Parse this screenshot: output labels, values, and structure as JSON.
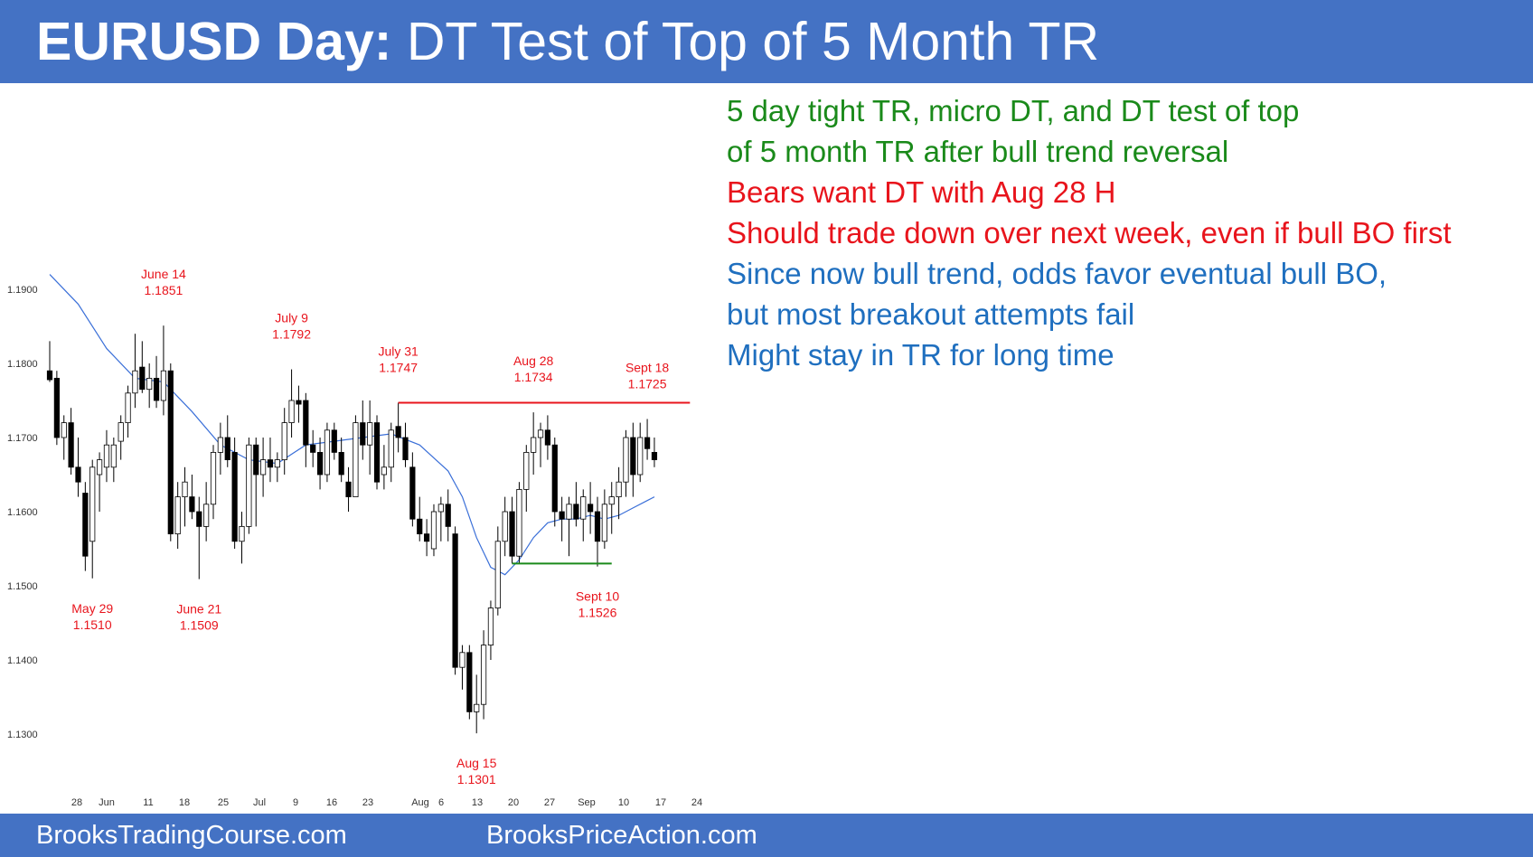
{
  "title": {
    "bold": "EURUSD Day:",
    "rest": " DT Test of Top of 5 Month TR"
  },
  "footer": {
    "left": "BrooksTradingCourse.com",
    "right": "BrooksPriceAction.com"
  },
  "commentary": [
    {
      "text": "5 day tight TR, micro DT, and DT test of top",
      "color": "#1a8a1a"
    },
    {
      "text": "of 5 month TR after bull trend reversal",
      "color": "#1a8a1a"
    },
    {
      "text": "Bears want DT with Aug 28 H",
      "color": "#e8141c"
    },
    {
      "text": "Should trade down over next week, even if bull BO first",
      "color": "#e8141c"
    },
    {
      "text": "Since now bull trend, odds favor eventual bull BO,",
      "color": "#1f6fbf"
    },
    {
      "text": "but most breakout attempts fail",
      "color": "#1f6fbf"
    },
    {
      "text": "Might stay in TR for long time",
      "color": "#1f6fbf"
    }
  ],
  "colors": {
    "accent": "#4472c4",
    "bear_candle": "#000000",
    "bull_candle": "#ffffff",
    "ema": "#3a6fd8",
    "label_red": "#e8141c",
    "resistance_line": "#e8141c",
    "support_line": "#1a8a1a"
  },
  "chart_data": {
    "type": "candlestick",
    "ylim": [
      1.125,
      1.199
    ],
    "yticks": [
      "1.1900",
      "1.1800",
      "1.1700",
      "1.1600",
      "1.1500",
      "1.1400",
      "1.1300"
    ],
    "xticks": [
      "28",
      "Jun",
      "11",
      "18",
      "25",
      "Jul",
      "9",
      "16",
      "23",
      "Aug",
      "6",
      "13",
      "20",
      "27",
      "Sep",
      "10",
      "17",
      "24"
    ],
    "candles": [
      {
        "o": 1.179,
        "h": 1.183,
        "l": 1.1775,
        "c": 1.1778
      },
      {
        "o": 1.178,
        "h": 1.179,
        "l": 1.169,
        "c": 1.17
      },
      {
        "o": 1.17,
        "h": 1.173,
        "l": 1.167,
        "c": 1.172
      },
      {
        "o": 1.172,
        "h": 1.174,
        "l": 1.165,
        "c": 1.166
      },
      {
        "o": 1.166,
        "h": 1.17,
        "l": 1.162,
        "c": 1.164
      },
      {
        "o": 1.1625,
        "h": 1.164,
        "l": 1.152,
        "c": 1.154
      },
      {
        "o": 1.156,
        "h": 1.167,
        "l": 1.151,
        "c": 1.166
      },
      {
        "o": 1.165,
        "h": 1.168,
        "l": 1.16,
        "c": 1.167
      },
      {
        "o": 1.166,
        "h": 1.171,
        "l": 1.164,
        "c": 1.169
      },
      {
        "o": 1.166,
        "h": 1.17,
        "l": 1.164,
        "c": 1.169
      },
      {
        "o": 1.1695,
        "h": 1.173,
        "l": 1.167,
        "c": 1.172
      },
      {
        "o": 1.172,
        "h": 1.177,
        "l": 1.17,
        "c": 1.176
      },
      {
        "o": 1.176,
        "h": 1.184,
        "l": 1.174,
        "c": 1.179
      },
      {
        "o": 1.1795,
        "h": 1.183,
        "l": 1.176,
        "c": 1.1765
      },
      {
        "o": 1.1765,
        "h": 1.18,
        "l": 1.174,
        "c": 1.178
      },
      {
        "o": 1.178,
        "h": 1.181,
        "l": 1.174,
        "c": 1.175
      },
      {
        "o": 1.175,
        "h": 1.1851,
        "l": 1.173,
        "c": 1.179
      },
      {
        "o": 1.179,
        "h": 1.18,
        "l": 1.156,
        "c": 1.157
      },
      {
        "o": 1.157,
        "h": 1.164,
        "l": 1.155,
        "c": 1.162
      },
      {
        "o": 1.162,
        "h": 1.166,
        "l": 1.158,
        "c": 1.164
      },
      {
        "o": 1.162,
        "h": 1.165,
        "l": 1.159,
        "c": 1.16
      },
      {
        "o": 1.16,
        "h": 1.162,
        "l": 1.1509,
        "c": 1.158
      },
      {
        "o": 1.158,
        "h": 1.164,
        "l": 1.156,
        "c": 1.161
      },
      {
        "o": 1.161,
        "h": 1.169,
        "l": 1.159,
        "c": 1.168
      },
      {
        "o": 1.168,
        "h": 1.172,
        "l": 1.165,
        "c": 1.17
      },
      {
        "o": 1.17,
        "h": 1.173,
        "l": 1.166,
        "c": 1.167
      },
      {
        "o": 1.168,
        "h": 1.17,
        "l": 1.155,
        "c": 1.156
      },
      {
        "o": 1.156,
        "h": 1.16,
        "l": 1.153,
        "c": 1.158
      },
      {
        "o": 1.158,
        "h": 1.17,
        "l": 1.157,
        "c": 1.169
      },
      {
        "o": 1.169,
        "h": 1.17,
        "l": 1.158,
        "c": 1.165
      },
      {
        "o": 1.165,
        "h": 1.17,
        "l": 1.162,
        "c": 1.167
      },
      {
        "o": 1.167,
        "h": 1.17,
        "l": 1.164,
        "c": 1.166
      },
      {
        "o": 1.166,
        "h": 1.168,
        "l": 1.164,
        "c": 1.167
      },
      {
        "o": 1.167,
        "h": 1.174,
        "l": 1.165,
        "c": 1.172
      },
      {
        "o": 1.172,
        "h": 1.1792,
        "l": 1.17,
        "c": 1.175
      },
      {
        "o": 1.175,
        "h": 1.177,
        "l": 1.172,
        "c": 1.1745
      },
      {
        "o": 1.175,
        "h": 1.176,
        "l": 1.166,
        "c": 1.169
      },
      {
        "o": 1.169,
        "h": 1.171,
        "l": 1.166,
        "c": 1.168
      },
      {
        "o": 1.168,
        "h": 1.17,
        "l": 1.163,
        "c": 1.165
      },
      {
        "o": 1.165,
        "h": 1.172,
        "l": 1.164,
        "c": 1.171
      },
      {
        "o": 1.171,
        "h": 1.172,
        "l": 1.167,
        "c": 1.168
      },
      {
        "o": 1.168,
        "h": 1.17,
        "l": 1.164,
        "c": 1.165
      },
      {
        "o": 1.164,
        "h": 1.166,
        "l": 1.16,
        "c": 1.162
      },
      {
        "o": 1.162,
        "h": 1.173,
        "l": 1.162,
        "c": 1.172
      },
      {
        "o": 1.172,
        "h": 1.175,
        "l": 1.167,
        "c": 1.169
      },
      {
        "o": 1.169,
        "h": 1.175,
        "l": 1.165,
        "c": 1.172
      },
      {
        "o": 1.172,
        "h": 1.173,
        "l": 1.163,
        "c": 1.164
      },
      {
        "o": 1.165,
        "h": 1.169,
        "l": 1.163,
        "c": 1.166
      },
      {
        "o": 1.166,
        "h": 1.172,
        "l": 1.164,
        "c": 1.171
      },
      {
        "o": 1.1715,
        "h": 1.1747,
        "l": 1.168,
        "c": 1.17
      },
      {
        "o": 1.17,
        "h": 1.172,
        "l": 1.166,
        "c": 1.167
      },
      {
        "o": 1.166,
        "h": 1.168,
        "l": 1.158,
        "c": 1.159
      },
      {
        "o": 1.159,
        "h": 1.162,
        "l": 1.156,
        "c": 1.157
      },
      {
        "o": 1.157,
        "h": 1.159,
        "l": 1.154,
        "c": 1.156
      },
      {
        "o": 1.155,
        "h": 1.161,
        "l": 1.154,
        "c": 1.16
      },
      {
        "o": 1.16,
        "h": 1.162,
        "l": 1.156,
        "c": 1.161
      },
      {
        "o": 1.161,
        "h": 1.163,
        "l": 1.156,
        "c": 1.158
      },
      {
        "o": 1.157,
        "h": 1.158,
        "l": 1.138,
        "c": 1.139
      },
      {
        "o": 1.139,
        "h": 1.142,
        "l": 1.136,
        "c": 1.141
      },
      {
        "o": 1.141,
        "h": 1.142,
        "l": 1.132,
        "c": 1.133
      },
      {
        "o": 1.133,
        "h": 1.138,
        "l": 1.1301,
        "c": 1.134
      },
      {
        "o": 1.134,
        "h": 1.144,
        "l": 1.132,
        "c": 1.142
      },
      {
        "o": 1.142,
        "h": 1.148,
        "l": 1.14,
        "c": 1.147
      },
      {
        "o": 1.147,
        "h": 1.158,
        "l": 1.146,
        "c": 1.156
      },
      {
        "o": 1.156,
        "h": 1.162,
        "l": 1.154,
        "c": 1.16
      },
      {
        "o": 1.16,
        "h": 1.162,
        "l": 1.153,
        "c": 1.154
      },
      {
        "o": 1.154,
        "h": 1.164,
        "l": 1.153,
        "c": 1.163
      },
      {
        "o": 1.163,
        "h": 1.169,
        "l": 1.16,
        "c": 1.168
      },
      {
        "o": 1.168,
        "h": 1.1734,
        "l": 1.165,
        "c": 1.17
      },
      {
        "o": 1.17,
        "h": 1.172,
        "l": 1.166,
        "c": 1.171
      },
      {
        "o": 1.171,
        "h": 1.173,
        "l": 1.167,
        "c": 1.169
      },
      {
        "o": 1.169,
        "h": 1.17,
        "l": 1.158,
        "c": 1.16
      },
      {
        "o": 1.16,
        "h": 1.162,
        "l": 1.156,
        "c": 1.159
      },
      {
        "o": 1.159,
        "h": 1.162,
        "l": 1.154,
        "c": 1.161
      },
      {
        "o": 1.161,
        "h": 1.164,
        "l": 1.158,
        "c": 1.159
      },
      {
        "o": 1.159,
        "h": 1.163,
        "l": 1.156,
        "c": 1.162
      },
      {
        "o": 1.161,
        "h": 1.164,
        "l": 1.157,
        "c": 1.16
      },
      {
        "o": 1.16,
        "h": 1.162,
        "l": 1.1526,
        "c": 1.156
      },
      {
        "o": 1.156,
        "h": 1.163,
        "l": 1.155,
        "c": 1.161
      },
      {
        "o": 1.161,
        "h": 1.164,
        "l": 1.157,
        "c": 1.162
      },
      {
        "o": 1.162,
        "h": 1.166,
        "l": 1.159,
        "c": 1.164
      },
      {
        "o": 1.164,
        "h": 1.171,
        "l": 1.162,
        "c": 1.17
      },
      {
        "o": 1.17,
        "h": 1.172,
        "l": 1.162,
        "c": 1.165
      },
      {
        "o": 1.165,
        "h": 1.172,
        "l": 1.164,
        "c": 1.17
      },
      {
        "o": 1.17,
        "h": 1.1725,
        "l": 1.167,
        "c": 1.1685
      },
      {
        "o": 1.168,
        "h": 1.17,
        "l": 1.166,
        "c": 1.167
      }
    ],
    "ema20": [
      [
        0,
        1.192
      ],
      [
        4,
        1.188
      ],
      [
        8,
        1.182
      ],
      [
        12,
        1.178
      ],
      [
        16,
        1.1775
      ],
      [
        20,
        1.1735
      ],
      [
        24,
        1.169
      ],
      [
        28,
        1.167
      ],
      [
        32,
        1.1665
      ],
      [
        36,
        1.169
      ],
      [
        40,
        1.1695
      ],
      [
        44,
        1.17
      ],
      [
        48,
        1.1705
      ],
      [
        52,
        1.169
      ],
      [
        56,
        1.1655
      ],
      [
        58,
        1.162
      ],
      [
        60,
        1.1565
      ],
      [
        62,
        1.1525
      ],
      [
        64,
        1.1515
      ],
      [
        66,
        1.1535
      ],
      [
        68,
        1.1565
      ],
      [
        70,
        1.1585
      ],
      [
        72,
        1.159
      ],
      [
        74,
        1.159
      ],
      [
        76,
        1.1595
      ],
      [
        78,
        1.159
      ],
      [
        80,
        1.1595
      ],
      [
        82,
        1.1605
      ],
      [
        84,
        1.1615
      ],
      [
        85,
        1.162
      ]
    ],
    "resistance_line": {
      "price": 1.1747,
      "from_bar": 49,
      "to_bar": 90
    },
    "support_line": {
      "price": 1.153,
      "from_bar": 65,
      "to_bar": 79
    },
    "annotations": [
      {
        "label": "June 14",
        "value": "1.1851",
        "bar": 16,
        "price": 1.1851,
        "placement": "above"
      },
      {
        "label": "July 9",
        "value": "1.1792",
        "bar": 34,
        "price": 1.1792,
        "placement": "above"
      },
      {
        "label": "July 31",
        "value": "1.1747",
        "bar": 49,
        "price": 1.1747,
        "placement": "above"
      },
      {
        "label": "Aug 28",
        "value": "1.1734",
        "bar": 68,
        "price": 1.1734,
        "placement": "above"
      },
      {
        "label": "Sept 18",
        "value": "1.1725",
        "bar": 84,
        "price": 1.1725,
        "placement": "above"
      },
      {
        "label": "May 29",
        "value": "1.1510",
        "bar": 6,
        "price": 1.151,
        "placement": "below"
      },
      {
        "label": "June 21",
        "value": "1.1509",
        "bar": 21,
        "price": 1.1509,
        "placement": "below"
      },
      {
        "label": "Sept 10",
        "value": "1.1526",
        "bar": 77,
        "price": 1.1526,
        "placement": "below"
      },
      {
        "label": "Aug 15",
        "value": "1.1301",
        "bar": 60,
        "price": 1.1301,
        "placement": "below"
      }
    ]
  }
}
